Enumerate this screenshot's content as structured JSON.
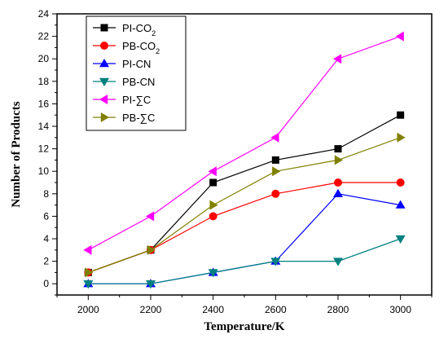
{
  "chart_data": {
    "type": "line",
    "xlabel": "Temperature/K",
    "ylabel": "Number of Products",
    "xlim": [
      1900,
      3100
    ],
    "ylim": [
      -1,
      24
    ],
    "xticks": [
      2000,
      2200,
      2400,
      2600,
      2800,
      3000
    ],
    "yticks": [
      0,
      2,
      4,
      6,
      8,
      10,
      12,
      14,
      16,
      18,
      20,
      22,
      24
    ],
    "grid": false,
    "legend_position": "top-left",
    "x": [
      2000,
      2200,
      2400,
      2600,
      2800,
      3000
    ],
    "series": [
      {
        "name": "PI-CO",
        "name_sub": "2",
        "marker": "square",
        "color": "#000000",
        "values": [
          1,
          3,
          9,
          11,
          12,
          15
        ]
      },
      {
        "name": "PB-CO",
        "name_sub": "2",
        "marker": "circle",
        "color": "#ff0000",
        "values": [
          1,
          3,
          6,
          8,
          9,
          9
        ]
      },
      {
        "name": "PI-CN",
        "name_sub": "",
        "marker": "triangle-up",
        "color": "#0000ff",
        "values": [
          0,
          0,
          1,
          2,
          8,
          7
        ]
      },
      {
        "name": "PB-CN",
        "name_sub": "",
        "marker": "triangle-down",
        "color": "#008080",
        "values": [
          0,
          0,
          1,
          2,
          2,
          4
        ]
      },
      {
        "name": "PI-∑C",
        "name_sub": "",
        "marker": "triangle-left",
        "color": "#ff00ff",
        "values": [
          3,
          6,
          10,
          13,
          20,
          22
        ]
      },
      {
        "name": "PB-∑C",
        "name_sub": "",
        "marker": "triangle-right",
        "color": "#808000",
        "values": [
          1,
          3,
          7,
          10,
          11,
          13
        ]
      }
    ]
  }
}
